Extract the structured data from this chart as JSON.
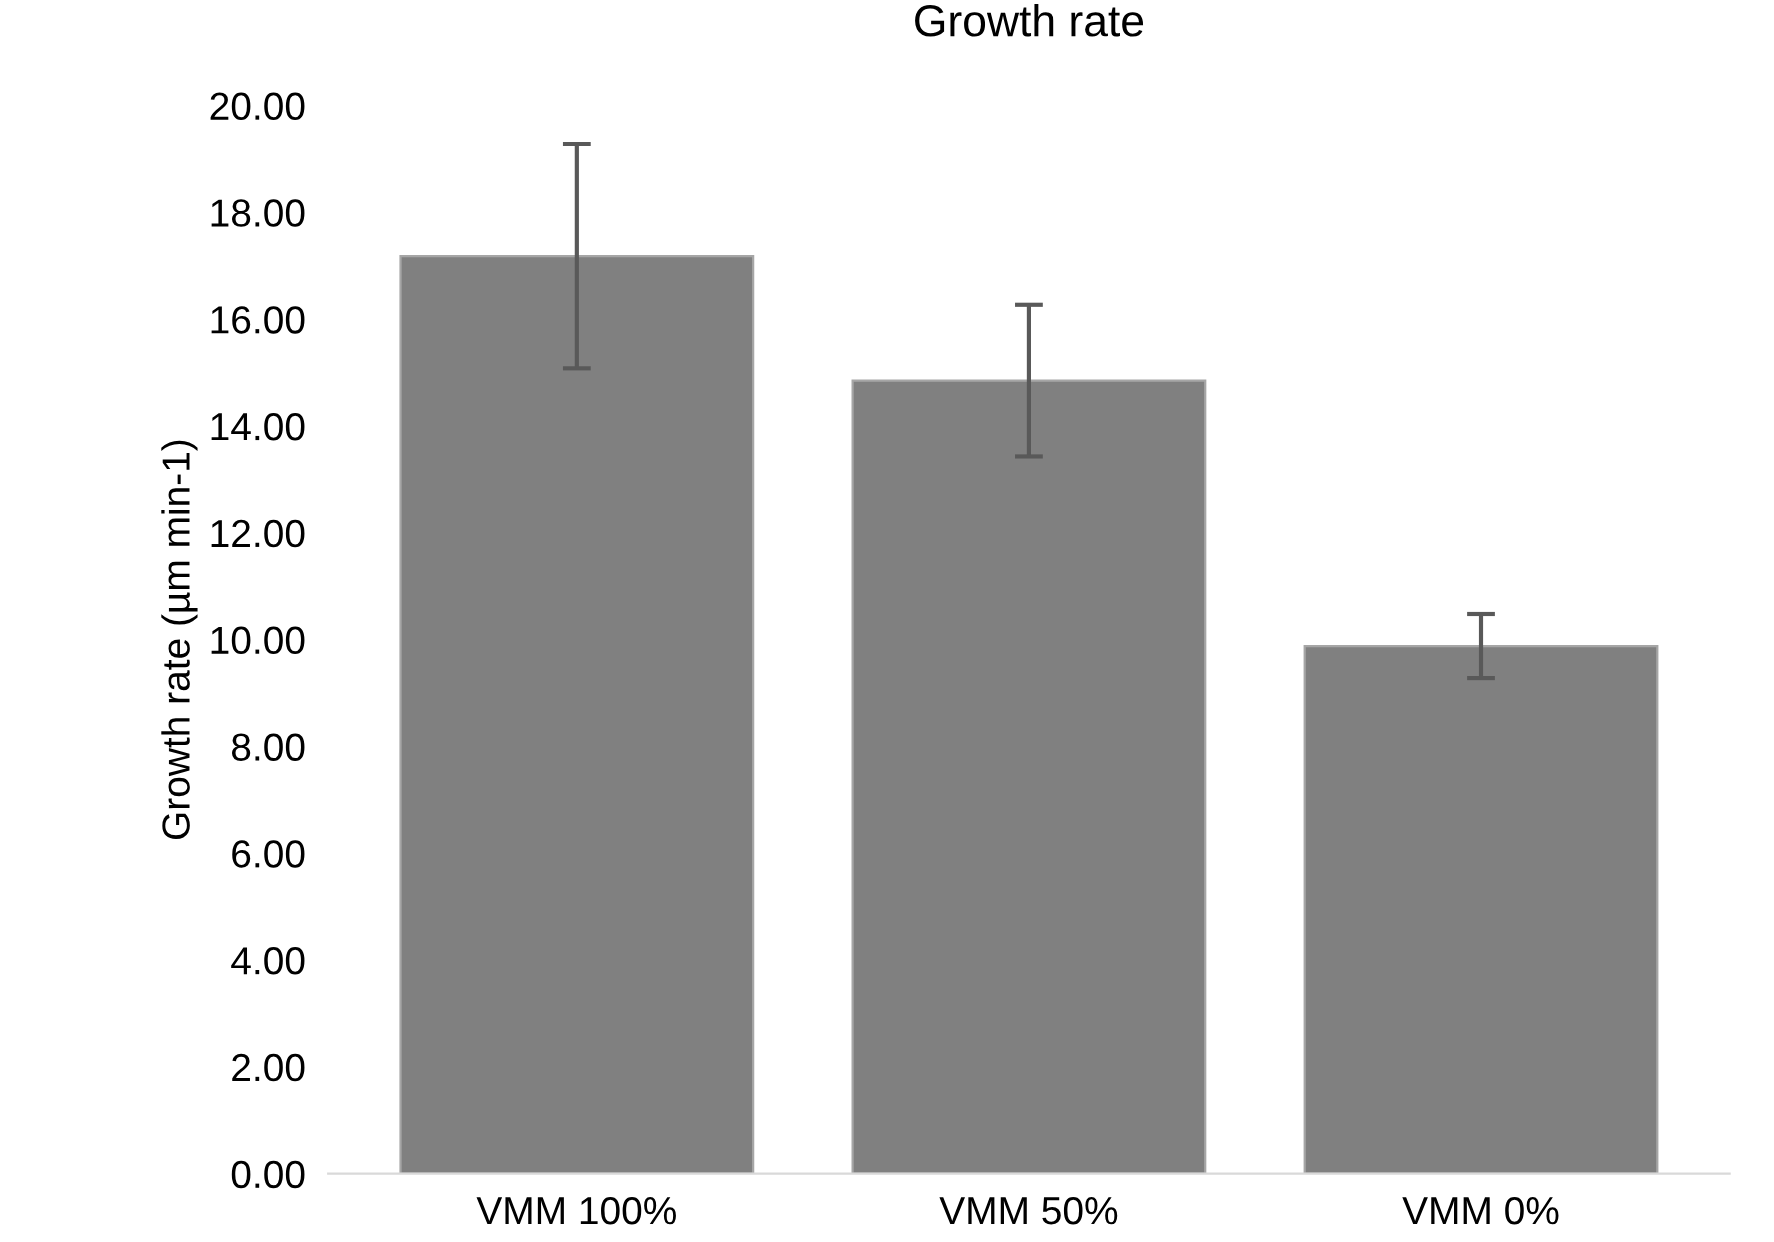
{
  "chart_data": {
    "type": "bar",
    "title": "Growth rate",
    "ylabel": "Growth rate (µm min-1)",
    "categories": [
      "VMM 100%",
      "VMM 50%",
      "VMM 0%"
    ],
    "values": [
      17.18,
      14.85,
      9.88
    ],
    "errors": [
      2.1,
      1.42,
      0.6
    ],
    "color": "#808080",
    "ylim": [
      0,
      20
    ],
    "yticks": [
      {
        "value": 0,
        "label": "0.00"
      },
      {
        "value": 2,
        "label": "2.00"
      },
      {
        "value": 4,
        "label": "4.00"
      },
      {
        "value": 6,
        "label": "6.00"
      },
      {
        "value": 8,
        "label": "8.00"
      },
      {
        "value": 10,
        "label": "10.00"
      },
      {
        "value": 12,
        "label": "12.00"
      },
      {
        "value": 14,
        "label": "14.00"
      },
      {
        "value": 16,
        "label": "16.00"
      },
      {
        "value": 18,
        "label": "18.00"
      },
      {
        "value": 20,
        "label": "20.00"
      }
    ],
    "grid": false,
    "legend": false
  }
}
